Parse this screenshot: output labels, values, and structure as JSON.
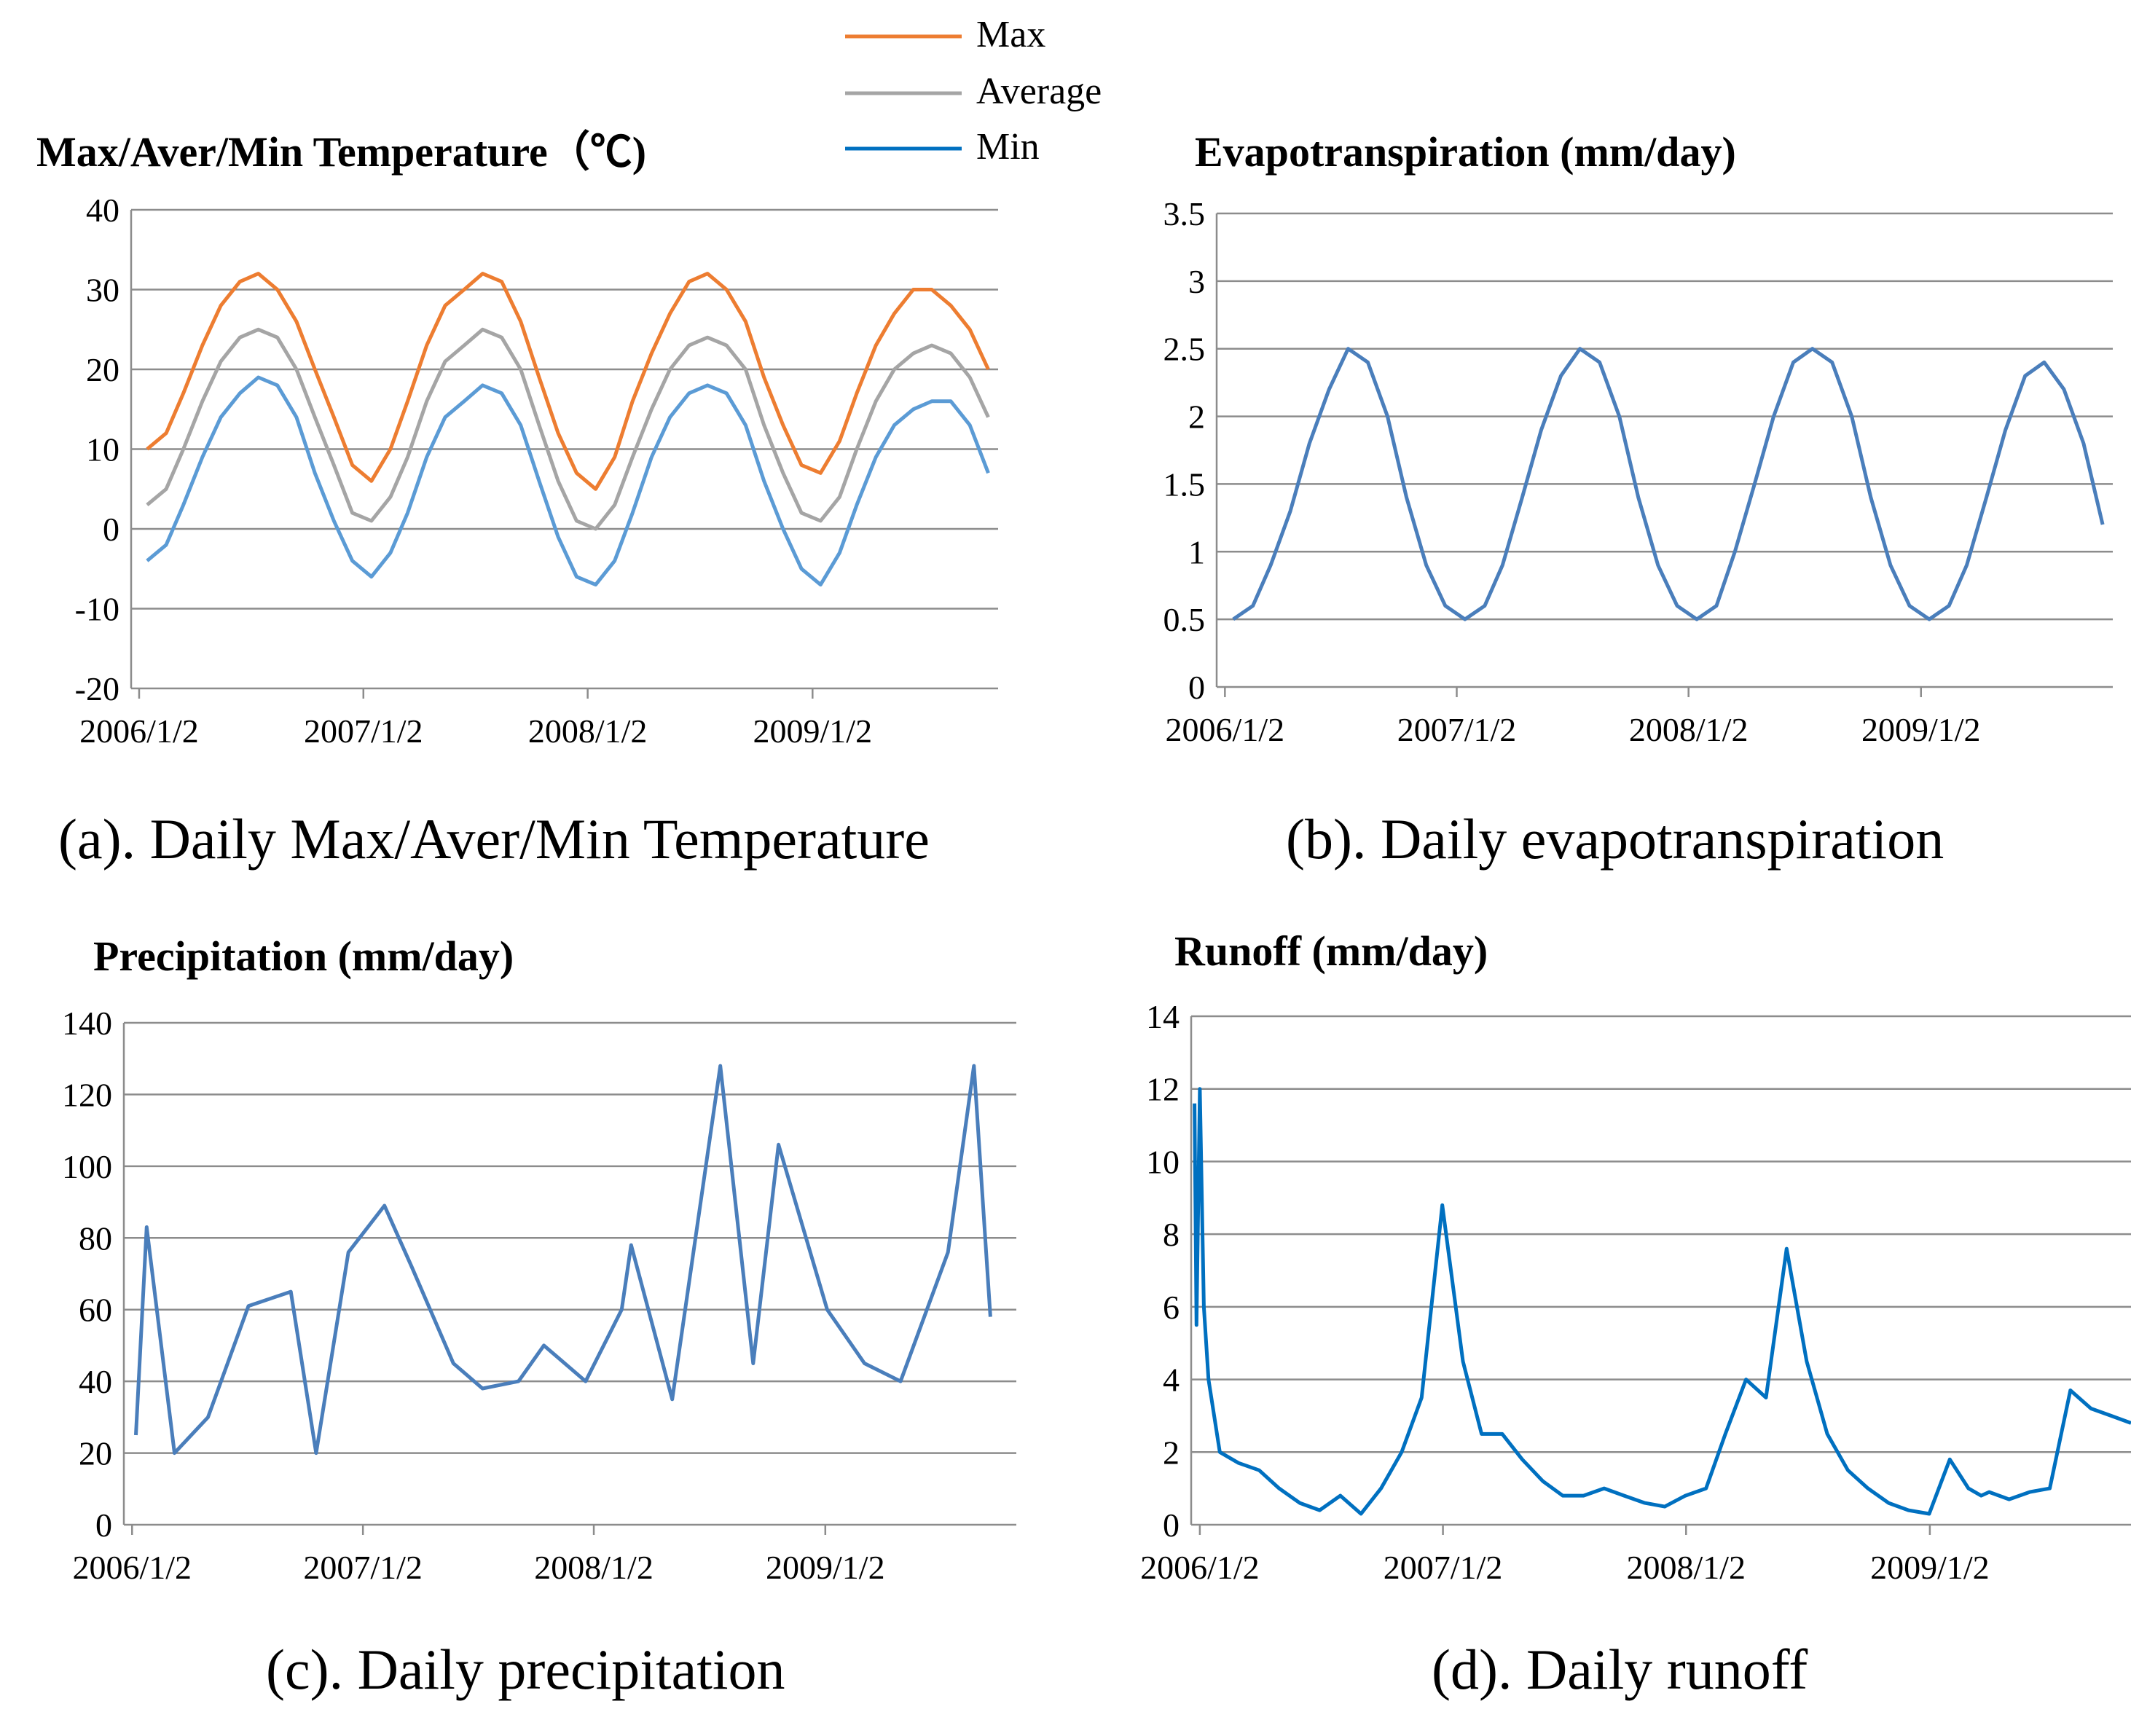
{
  "legend": {
    "items": [
      {
        "label": "Max",
        "color": "#ed7d31"
      },
      {
        "label": "Average",
        "color": "#a5a5a5"
      },
      {
        "label": "Min",
        "color": "#5b9bd5"
      }
    ]
  },
  "chart_data": [
    {
      "id": "temperature",
      "type": "line",
      "title": "Max/Aver/Min Temperature（℃)",
      "caption": "(a). Daily Max/Aver/Min Temperature",
      "xlabel": "",
      "ylabel": "",
      "x_range": [
        "2005-12-20",
        "2009-10-31"
      ],
      "ylim": [
        -20,
        40
      ],
      "yticks": [
        "40",
        "30",
        "20",
        "10",
        "0",
        "-10",
        "-20"
      ],
      "xticks": [
        "2006/1/2",
        "2007/1/2",
        "2008/1/2",
        "2009/1/2"
      ],
      "grid": true,
      "legend": "top-center",
      "series": [
        {
          "name": "Max",
          "color": "#ed7d31",
          "x": [
            "2006-01",
            "2006-02",
            "2006-03",
            "2006-04",
            "2006-05",
            "2006-06",
            "2006-07",
            "2006-08",
            "2006-09",
            "2006-10",
            "2006-11",
            "2006-12",
            "2007-01",
            "2007-02",
            "2007-03",
            "2007-04",
            "2007-05",
            "2007-06",
            "2007-07",
            "2007-08",
            "2007-09",
            "2007-10",
            "2007-11",
            "2007-12",
            "2008-01",
            "2008-02",
            "2008-03",
            "2008-04",
            "2008-05",
            "2008-06",
            "2008-07",
            "2008-08",
            "2008-09",
            "2008-10",
            "2008-11",
            "2008-12",
            "2009-01",
            "2009-02",
            "2009-03",
            "2009-04",
            "2009-05",
            "2009-06",
            "2009-07",
            "2009-08",
            "2009-09",
            "2009-10"
          ],
          "y": [
            10,
            12,
            17,
            23,
            28,
            31,
            32,
            30,
            26,
            20,
            14,
            8,
            6,
            10,
            16,
            23,
            28,
            30,
            32,
            31,
            26,
            19,
            12,
            7,
            5,
            9,
            16,
            22,
            27,
            31,
            32,
            30,
            26,
            19,
            13,
            8,
            7,
            11,
            17,
            23,
            27,
            30,
            30,
            28,
            25,
            20
          ]
        },
        {
          "name": "Average",
          "color": "#a5a5a5",
          "x": [
            "2006-01",
            "2006-02",
            "2006-03",
            "2006-04",
            "2006-05",
            "2006-06",
            "2006-07",
            "2006-08",
            "2006-09",
            "2006-10",
            "2006-11",
            "2006-12",
            "2007-01",
            "2007-02",
            "2007-03",
            "2007-04",
            "2007-05",
            "2007-06",
            "2007-07",
            "2007-08",
            "2007-09",
            "2007-10",
            "2007-11",
            "2007-12",
            "2008-01",
            "2008-02",
            "2008-03",
            "2008-04",
            "2008-05",
            "2008-06",
            "2008-07",
            "2008-08",
            "2008-09",
            "2008-10",
            "2008-11",
            "2008-12",
            "2009-01",
            "2009-02",
            "2009-03",
            "2009-04",
            "2009-05",
            "2009-06",
            "2009-07",
            "2009-08",
            "2009-09",
            "2009-10"
          ],
          "y": [
            3,
            5,
            10,
            16,
            21,
            24,
            25,
            24,
            20,
            14,
            8,
            2,
            1,
            4,
            9,
            16,
            21,
            23,
            25,
            24,
            20,
            13,
            6,
            1,
            0,
            3,
            9,
            15,
            20,
            23,
            24,
            23,
            20,
            13,
            7,
            2,
            1,
            4,
            10,
            16,
            20,
            22,
            23,
            22,
            19,
            14
          ]
        },
        {
          "name": "Min",
          "color": "#5b9bd5",
          "x": [
            "2006-01",
            "2006-02",
            "2006-03",
            "2006-04",
            "2006-05",
            "2006-06",
            "2006-07",
            "2006-08",
            "2006-09",
            "2006-10",
            "2006-11",
            "2006-12",
            "2007-01",
            "2007-02",
            "2007-03",
            "2007-04",
            "2007-05",
            "2007-06",
            "2007-07",
            "2007-08",
            "2007-09",
            "2007-10",
            "2007-11",
            "2007-12",
            "2008-01",
            "2008-02",
            "2008-03",
            "2008-04",
            "2008-05",
            "2008-06",
            "2008-07",
            "2008-08",
            "2008-09",
            "2008-10",
            "2008-11",
            "2008-12",
            "2009-01",
            "2009-02",
            "2009-03",
            "2009-04",
            "2009-05",
            "2009-06",
            "2009-07",
            "2009-08",
            "2009-09",
            "2009-10"
          ],
          "y": [
            -4,
            -2,
            3,
            9,
            14,
            17,
            19,
            18,
            14,
            7,
            1,
            -4,
            -6,
            -3,
            2,
            9,
            14,
            16,
            18,
            17,
            13,
            6,
            -1,
            -6,
            -7,
            -4,
            2,
            9,
            14,
            17,
            18,
            17,
            13,
            6,
            0,
            -5,
            -7,
            -3,
            3,
            9,
            13,
            15,
            16,
            16,
            13,
            7
          ]
        }
      ]
    },
    {
      "id": "evapotranspiration",
      "type": "line",
      "title": "Evapotranspiration (mm/day)",
      "caption": "(b). Daily evapotranspiration",
      "xlabel": "",
      "ylabel": "",
      "x_range": [
        "2005-12-20",
        "2009-10-31"
      ],
      "ylim": [
        0,
        3.5
      ],
      "yticks": [
        "3.5",
        "3",
        "2.5",
        "2",
        "1.5",
        "1",
        "0.5",
        "0"
      ],
      "xticks": [
        "2006/1/2",
        "2007/1/2",
        "2008/1/2",
        "2009/1/2"
      ],
      "grid": true,
      "series": [
        {
          "color": "#4a7ebb",
          "x": [
            "2006-01",
            "2006-02",
            "2006-03",
            "2006-04",
            "2006-05",
            "2006-06",
            "2006-07",
            "2006-08",
            "2006-09",
            "2006-10",
            "2006-11",
            "2006-12",
            "2007-01",
            "2007-02",
            "2007-03",
            "2007-04",
            "2007-05",
            "2007-06",
            "2007-07",
            "2007-08",
            "2007-09",
            "2007-10",
            "2007-11",
            "2007-12",
            "2008-01",
            "2008-02",
            "2008-03",
            "2008-04",
            "2008-05",
            "2008-06",
            "2008-07",
            "2008-08",
            "2008-09",
            "2008-10",
            "2008-11",
            "2008-12",
            "2009-01",
            "2009-02",
            "2009-03",
            "2009-04",
            "2009-05",
            "2009-06",
            "2009-07",
            "2009-08",
            "2009-09",
            "2009-10"
          ],
          "y": [
            0.5,
            0.6,
            0.9,
            1.3,
            1.8,
            2.2,
            2.5,
            2.4,
            2.0,
            1.4,
            0.9,
            0.6,
            0.5,
            0.6,
            0.9,
            1.4,
            1.9,
            2.3,
            2.5,
            2.4,
            2.0,
            1.4,
            0.9,
            0.6,
            0.5,
            0.6,
            1.0,
            1.5,
            2.0,
            2.4,
            2.5,
            2.4,
            2.0,
            1.4,
            0.9,
            0.6,
            0.5,
            0.6,
            0.9,
            1.4,
            1.9,
            2.3,
            2.4,
            2.2,
            1.8,
            1.2
          ]
        }
      ]
    },
    {
      "id": "precipitation",
      "type": "line",
      "title": "Precipitation (mm/day)",
      "caption": "(c). Daily precipitation",
      "xlabel": "",
      "ylabel": "",
      "x_range": [
        "2005-12-20",
        "2009-10-31"
      ],
      "ylim": [
        0,
        140
      ],
      "yticks": [
        "140",
        "120",
        "100",
        "80",
        "60",
        "40",
        "20",
        "0"
      ],
      "xticks": [
        "2006/1/2",
        "2007/1/2",
        "2008/1/2",
        "2009/1/2"
      ],
      "grid": true,
      "series": [
        {
          "color": "#4a7ebb",
          "x": [
            "2006-01-08",
            "2006-01-25",
            "2006-03-10",
            "2006-05-02",
            "2006-07-05",
            "2006-09-10",
            "2006-10-20",
            "2006-12-10",
            "2007-02-05",
            "2007-03-20",
            "2007-05-25",
            "2007-07-10",
            "2007-09-05",
            "2007-10-15",
            "2007-12-20",
            "2008-02-15",
            "2008-03-01",
            "2008-05-05",
            "2008-07-20",
            "2008-09-10",
            "2008-10-20",
            "2009-01-05",
            "2009-03-05",
            "2009-05-01",
            "2009-07-15",
            "2009-08-25",
            "2009-09-20"
          ],
          "y": [
            25,
            83,
            20,
            30,
            61,
            65,
            20,
            76,
            89,
            72,
            45,
            38,
            40,
            50,
            40,
            60,
            78,
            35,
            128,
            45,
            106,
            60,
            45,
            40,
            76,
            128,
            58
          ]
        }
      ]
    },
    {
      "id": "runoff",
      "type": "line",
      "title": "Runoff (mm/day)",
      "caption": "(d). Daily runoff",
      "xlabel": "",
      "ylabel": "",
      "x_range": [
        "2005-12-20",
        "2009-10-31"
      ],
      "ylim": [
        0,
        14
      ],
      "yticks": [
        "14",
        "12",
        "10",
        "8",
        "6",
        "4",
        "2",
        "0"
      ],
      "xticks": [
        "2006/1/2",
        "2007/1/2",
        "2008/1/2",
        "2009/1/2"
      ],
      "grid": true,
      "series": [
        {
          "color": "#0070c0",
          "x": [
            "2005-12-25",
            "2005-12-28",
            "2006-01-02",
            "2006-01-08",
            "2006-01-15",
            "2006-02-01",
            "2006-03-01",
            "2006-04-01",
            "2006-05-01",
            "2006-06-01",
            "2006-07-01",
            "2006-08-01",
            "2006-09-01",
            "2006-10-01",
            "2006-11-01",
            "2006-12-01",
            "2007-01-01",
            "2007-02-01",
            "2007-03-01",
            "2007-04-01",
            "2007-05-01",
            "2007-06-01",
            "2007-07-01",
            "2007-08-01",
            "2007-09-01",
            "2007-10-01",
            "2007-11-01",
            "2007-12-01",
            "2008-01-01",
            "2008-02-01",
            "2008-03-01",
            "2008-04-01",
            "2008-05-01",
            "2008-06-01",
            "2008-07-01",
            "2008-08-01",
            "2008-09-01",
            "2008-10-01",
            "2008-11-01",
            "2008-12-01",
            "2009-01-01",
            "2009-02-01",
            "2009-03-01",
            "2009-03-20",
            "2009-04-01",
            "2009-05-01",
            "2009-06-01",
            "2009-07-01",
            "2009-08-01",
            "2009-09-01",
            "2009-10-01",
            "2009-10-31"
          ],
          "y": [
            11.6,
            5.5,
            12.0,
            6.0,
            4.0,
            2.0,
            1.7,
            1.5,
            1.0,
            0.6,
            0.4,
            0.8,
            0.3,
            1.0,
            2.0,
            3.5,
            8.8,
            4.5,
            2.5,
            2.5,
            1.8,
            1.2,
            0.8,
            0.8,
            1.0,
            0.8,
            0.6,
            0.5,
            0.8,
            1.0,
            2.5,
            4.0,
            3.5,
            7.6,
            4.5,
            2.5,
            1.5,
            1.0,
            0.6,
            0.4,
            0.3,
            1.8,
            1.0,
            0.8,
            0.9,
            0.7,
            0.9,
            1.0,
            3.7,
            3.2,
            3.0,
            2.8
          ]
        }
      ]
    }
  ]
}
